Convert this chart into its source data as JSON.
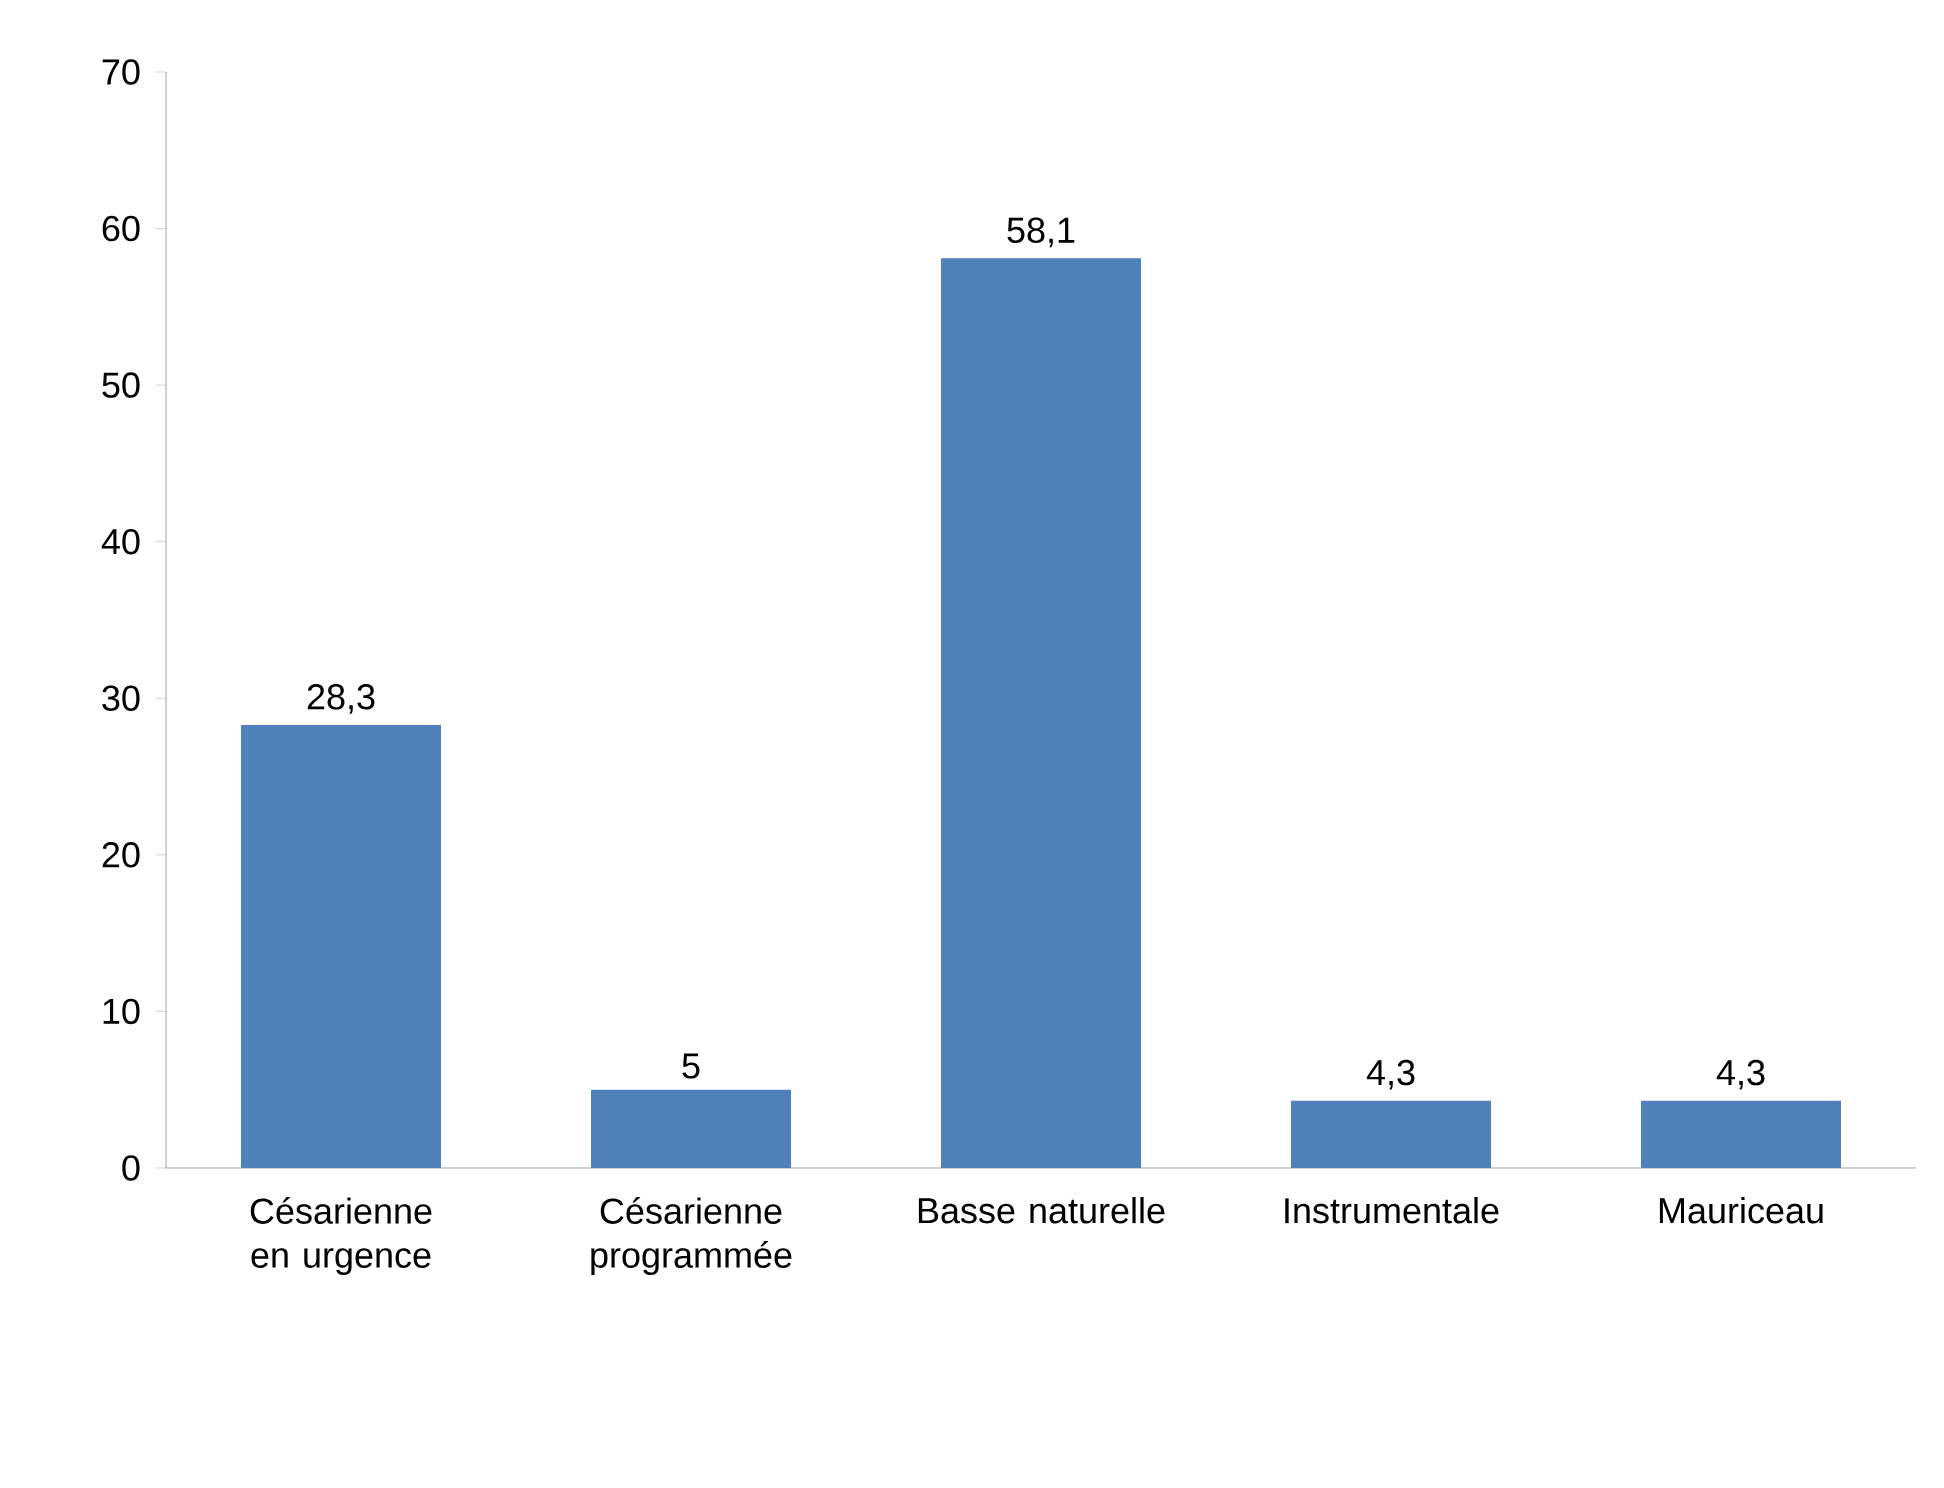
{
  "chart_data": {
    "type": "bar",
    "categories": [
      "Césarienne en urgence",
      "Césarienne programmée",
      "Basse naturelle",
      "Instrumentale",
      "Mauriceau"
    ],
    "values": [
      28.3,
      5,
      58.1,
      4.3,
      4.3
    ],
    "value_labels": [
      "28,3",
      "5",
      "58,1",
      "4,3",
      "4,3"
    ],
    "color": "#4f81bd",
    "ylim": [
      0,
      70
    ],
    "yticks": [
      0,
      10,
      20,
      30,
      40,
      50,
      60,
      70
    ]
  }
}
